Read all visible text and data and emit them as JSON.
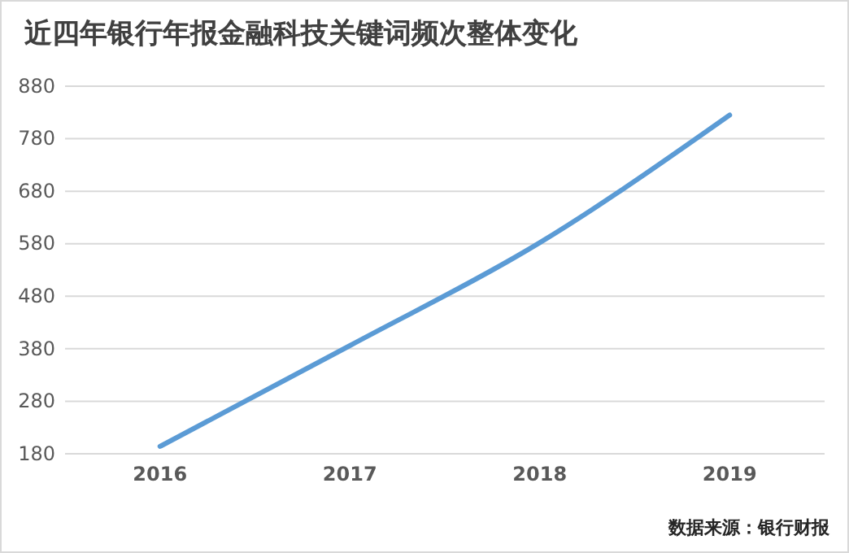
{
  "chart_data": {
    "type": "line",
    "title": "近四年银行年报金融科技关键词频次整体变化",
    "categories": [
      "2016",
      "2017",
      "2018",
      "2019"
    ],
    "series": [
      {
        "color": "#5b9bd5",
        "values": [
          194,
          386,
          582,
          825
        ]
      }
    ],
    "ylim": [
      180,
      880
    ],
    "yticks": [
      180,
      280,
      380,
      480,
      580,
      680,
      780,
      880
    ],
    "grid": "y",
    "marker": "none",
    "line_style": "solid",
    "annotations": [
      "数据来源：银行财报"
    ]
  }
}
